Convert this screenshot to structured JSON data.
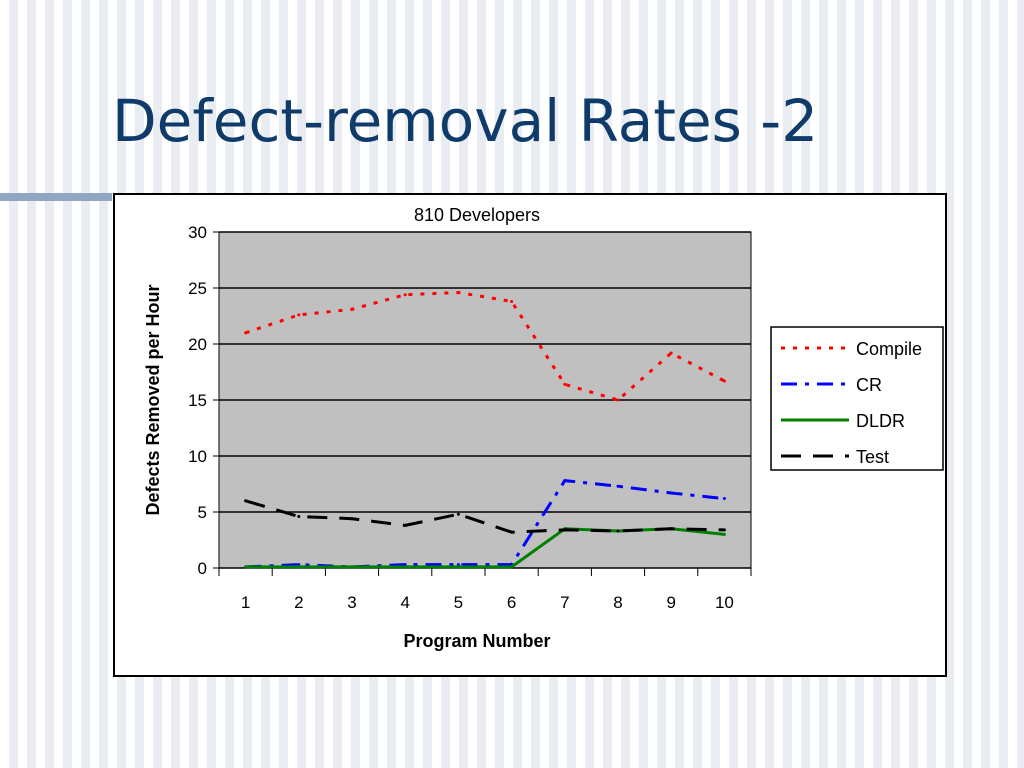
{
  "slide": {
    "title": "Defect-removal Rates -2"
  },
  "chart_data": {
    "type": "line",
    "title": "810 Developers",
    "xlabel": "Program Number",
    "ylabel": "Defects Removed per Hour",
    "categories": [
      "1",
      "2",
      "3",
      "4",
      "5",
      "6",
      "7",
      "8",
      "9",
      "10"
    ],
    "ylim": [
      0,
      30
    ],
    "yticks": [
      0,
      5,
      10,
      15,
      20,
      25,
      30
    ],
    "grid": true,
    "legend_position": "right",
    "plot_background": "#c0c0c0",
    "series": [
      {
        "name": "Compile",
        "color": "#ff0000",
        "dash": "dotted",
        "values": [
          21,
          22.6,
          23.1,
          24.4,
          24.6,
          23.8,
          16.4,
          15.0,
          19.2,
          16.7
        ]
      },
      {
        "name": "CR",
        "color": "#0000ff",
        "dash": "dashdot",
        "values": [
          0.1,
          0.3,
          0.1,
          0.3,
          0.3,
          0.3,
          7.8,
          7.3,
          6.7,
          6.2
        ]
      },
      {
        "name": "DLDR",
        "color": "#008000",
        "dash": "solid",
        "values": [
          0.1,
          0.1,
          0.1,
          0.1,
          0.1,
          0.1,
          3.5,
          3.3,
          3.5,
          3.0
        ]
      },
      {
        "name": "Test",
        "color": "#000000",
        "dash": "dashed",
        "values": [
          6.0,
          4.6,
          4.4,
          3.8,
          4.8,
          3.2,
          3.4,
          3.3,
          3.5,
          3.4
        ]
      }
    ]
  }
}
